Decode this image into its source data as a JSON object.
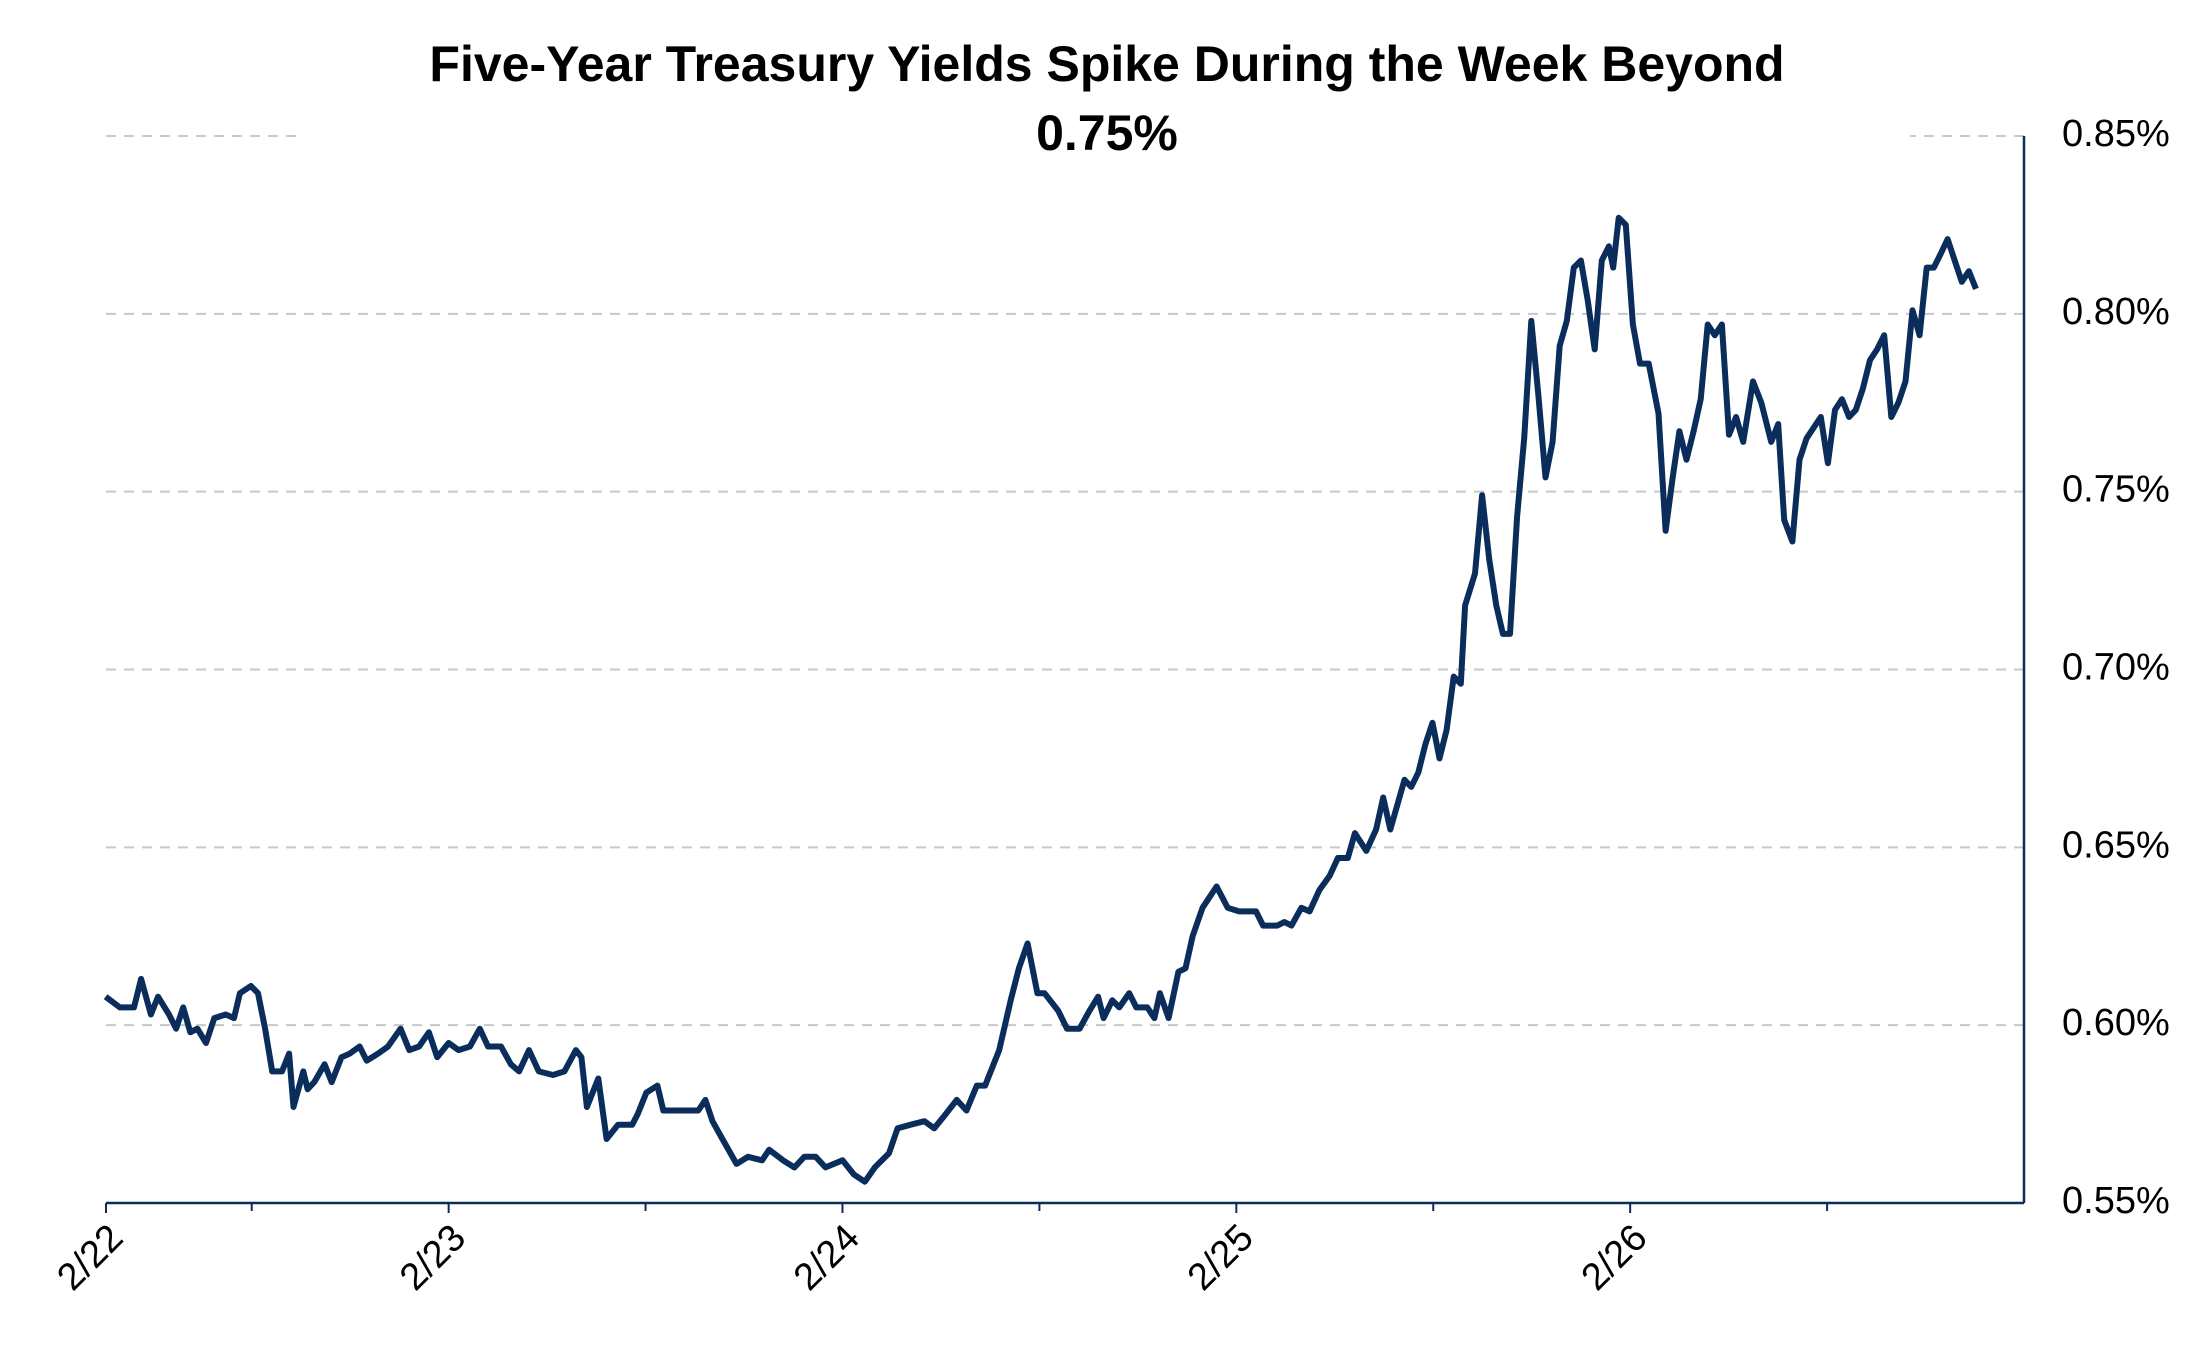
{
  "chart_data": {
    "type": "line",
    "title": [
      "Five-Year Treasury Yields Spike During the Week Beyond",
      "0.75%"
    ],
    "x": [
      22.129,
      22.165,
      22.201,
      22.219,
      22.244,
      22.262,
      22.29,
      22.308,
      22.326,
      22.344,
      22.362,
      22.384,
      22.405,
      22.434,
      22.455,
      22.47,
      22.498,
      22.516,
      22.534,
      22.552,
      22.577,
      22.595,
      22.606,
      22.631,
      22.642,
      22.659,
      22.685,
      22.703,
      22.728,
      22.749,
      22.774,
      22.792,
      22.821,
      22.846,
      22.878,
      22.9,
      22.925,
      22.95,
      22.971,
      23.0,
      23.025,
      23.054,
      23.079,
      23.1,
      23.133,
      23.158,
      23.179,
      23.204,
      23.229,
      23.265,
      23.294,
      23.323,
      23.337,
      23.351,
      23.38,
      23.401,
      23.43,
      23.466,
      23.48,
      23.502,
      23.53,
      23.545,
      23.581,
      23.634,
      23.652,
      23.67,
      23.695,
      23.731,
      23.76,
      23.796,
      23.814,
      23.849,
      23.878,
      23.903,
      23.932,
      23.957,
      24.0,
      24.029,
      24.057,
      24.082,
      24.118,
      24.14,
      24.172,
      24.208,
      24.233,
      24.262,
      24.29,
      24.315,
      24.341,
      24.362,
      24.398,
      24.427,
      24.448,
      24.47,
      24.495,
      24.513,
      24.548,
      24.57,
      24.602,
      24.627,
      24.649,
      24.663,
      24.685,
      24.703,
      24.728,
      24.746,
      24.774,
      24.792,
      24.806,
      24.828,
      24.853,
      24.871,
      24.889,
      24.914,
      24.95,
      24.978,
      25.007,
      25.05,
      25.068,
      25.104,
      25.122,
      25.14,
      25.165,
      25.186,
      25.211,
      25.237,
      25.258,
      25.283,
      25.301,
      25.33,
      25.355,
      25.373,
      25.391,
      25.409,
      25.427,
      25.444,
      25.462,
      25.48,
      25.498,
      25.516,
      25.534,
      25.552,
      25.57,
      25.581,
      25.606,
      25.624,
      25.642,
      25.66,
      25.677,
      25.695,
      25.713,
      25.731,
      25.749,
      25.767,
      25.785,
      25.803,
      25.821,
      25.839,
      25.857,
      25.875,
      25.892,
      25.91,
      25.928,
      25.946,
      25.957,
      25.971,
      25.989,
      26.007,
      26.025,
      26.047,
      26.072,
      26.09,
      26.108,
      26.125,
      26.143,
      26.161,
      26.179,
      26.197,
      26.215,
      26.233,
      26.251,
      26.269,
      26.287,
      26.312,
      26.333,
      26.358,
      26.376,
      26.391,
      26.412,
      26.43,
      26.448,
      26.466,
      26.484,
      26.502,
      26.52,
      26.538,
      26.556,
      26.573,
      26.591,
      26.609,
      26.627,
      26.645,
      26.663,
      26.681,
      26.699,
      26.717,
      26.735,
      26.753,
      26.771,
      26.789,
      26.806,
      26.824,
      26.842,
      26.86,
      26.878
    ],
    "values": [
      0.608,
      0.605,
      0.605,
      0.613,
      0.603,
      0.608,
      0.603,
      0.599,
      0.605,
      0.598,
      0.599,
      0.595,
      0.602,
      0.603,
      0.602,
      0.609,
      0.611,
      0.609,
      0.599,
      0.587,
      0.587,
      0.592,
      0.577,
      0.587,
      0.582,
      0.584,
      0.589,
      0.584,
      0.591,
      0.592,
      0.594,
      0.59,
      0.592,
      0.594,
      0.599,
      0.593,
      0.594,
      0.598,
      0.591,
      0.595,
      0.593,
      0.594,
      0.599,
      0.594,
      0.594,
      0.589,
      0.587,
      0.593,
      0.587,
      0.586,
      0.587,
      0.593,
      0.591,
      0.577,
      0.585,
      0.568,
      0.572,
      0.572,
      0.575,
      0.581,
      0.583,
      0.576,
      0.576,
      0.576,
      0.579,
      0.573,
      0.568,
      0.561,
      0.563,
      0.562,
      0.565,
      0.562,
      0.56,
      0.563,
      0.563,
      0.56,
      0.562,
      0.558,
      0.556,
      0.56,
      0.564,
      0.571,
      0.572,
      0.573,
      0.571,
      0.575,
      0.579,
      0.576,
      0.583,
      0.583,
      0.593,
      0.607,
      0.616,
      0.623,
      0.609,
      0.609,
      0.604,
      0.599,
      0.599,
      0.604,
      0.608,
      0.602,
      0.607,
      0.605,
      0.609,
      0.605,
      0.605,
      0.602,
      0.609,
      0.602,
      0.615,
      0.616,
      0.625,
      0.633,
      0.639,
      0.633,
      0.632,
      0.632,
      0.628,
      0.628,
      0.629,
      0.628,
      0.633,
      0.632,
      0.638,
      0.642,
      0.647,
      0.647,
      0.654,
      0.649,
      0.655,
      0.664,
      0.655,
      0.662,
      0.669,
      0.667,
      0.671,
      0.679,
      0.685,
      0.675,
      0.683,
      0.698,
      0.696,
      0.718,
      0.727,
      0.749,
      0.731,
      0.718,
      0.71,
      0.71,
      0.743,
      0.765,
      0.798,
      0.777,
      0.754,
      0.764,
      0.791,
      0.798,
      0.813,
      0.815,
      0.804,
      0.79,
      0.815,
      0.819,
      0.813,
      0.827,
      0.825,
      0.797,
      0.786,
      0.786,
      0.772,
      0.739,
      0.754,
      0.767,
      0.759,
      0.767,
      0.776,
      0.797,
      0.794,
      0.797,
      0.766,
      0.771,
      0.764,
      0.781,
      0.775,
      0.764,
      0.769,
      0.742,
      0.736,
      0.759,
      0.765,
      0.768,
      0.771,
      0.758,
      0.773,
      0.776,
      0.771,
      0.773,
      0.779,
      0.787,
      0.79,
      0.794,
      0.771,
      0.775,
      0.781,
      0.801,
      0.794,
      0.813,
      0.813,
      0.817,
      0.821,
      0.815,
      0.809,
      0.812,
      0.807
    ],
    "color": "#0b2d5b",
    "xlim": [
      22.13,
      27.0
    ],
    "xticks": [
      {
        "value": 22.13,
        "label": "2/22"
      },
      {
        "value": 23,
        "label": "2/23"
      },
      {
        "value": 24,
        "label": "2/24"
      },
      {
        "value": 25,
        "label": "2/25"
      },
      {
        "value": 26,
        "label": "2/26"
      }
    ],
    "xminor_ticks": [
      22.5,
      23.5,
      24.5,
      25.5,
      26.5
    ],
    "ylim": [
      0.55,
      0.85
    ],
    "yticks": [
      {
        "value": 0.55,
        "label": "0.55%"
      },
      {
        "value": 0.6,
        "label": "0.60%"
      },
      {
        "value": 0.65,
        "label": "0.65%"
      },
      {
        "value": 0.7,
        "label": "0.70%"
      },
      {
        "value": 0.75,
        "label": "0.75%"
      },
      {
        "value": 0.8,
        "label": "0.80%"
      },
      {
        "value": 0.85,
        "label": "0.85%"
      }
    ],
    "grid": true,
    "y_axis_side": "right"
  }
}
